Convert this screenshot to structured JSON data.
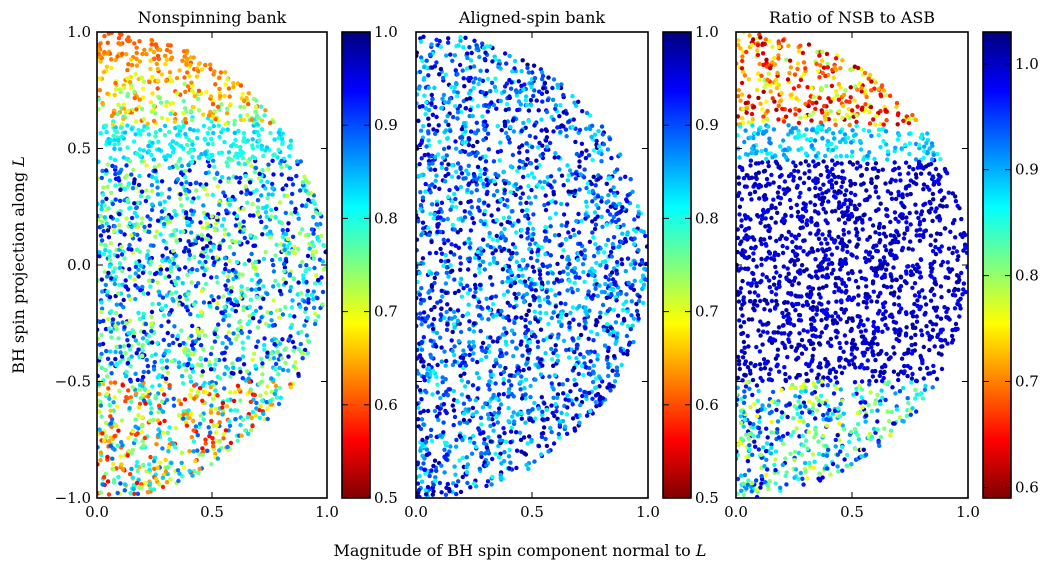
{
  "xlabel": "Magnitude of BH spin component normal to",
  "ylabel": "BH spin projection along",
  "vector_symbol": "L",
  "colormap": [
    "#7f0000",
    "#ff0000",
    "#ff7f00",
    "#ffff00",
    "#7fff7f",
    "#00ffff",
    "#007fff",
    "#0000ff",
    "#00007f"
  ],
  "chart_data": [
    {
      "type": "scatter",
      "title": "Nonspinning bank",
      "xlim": [
        0.0,
        1.0
      ],
      "ylim": [
        -1.0,
        1.0
      ],
      "xticks": [
        "0.0",
        "0.5",
        "1.0"
      ],
      "yticks": [
        "1.0",
        "0.5",
        "0.0",
        "−0.5",
        "−1.0"
      ],
      "colorbar": {
        "range": [
          0.5,
          1.0
        ],
        "ticks": [
          "1.0",
          "0.9",
          "0.8",
          "0.7",
          "0.6",
          "0.5"
        ]
      },
      "value_bands": [
        {
          "chi_parallel": [
            0.6,
            1.0
          ],
          "value": [
            0.55,
            0.8
          ]
        },
        {
          "chi_parallel": [
            0.45,
            0.6
          ],
          "value": [
            0.78,
            0.85
          ]
        },
        {
          "chi_parallel": [
            -0.5,
            0.45
          ],
          "value": [
            0.7,
            0.98
          ]
        },
        {
          "chi_parallel": [
            -1.0,
            -0.5
          ],
          "value": [
            0.55,
            0.9
          ]
        }
      ]
    },
    {
      "type": "scatter",
      "title": "Aligned-spin bank",
      "xlim": [
        0.0,
        1.0
      ],
      "ylim": [
        -1.0,
        1.0
      ],
      "xticks": [
        "0.0",
        "0.5",
        "1.0"
      ],
      "yticks": [],
      "colorbar": {
        "range": [
          0.5,
          1.0
        ],
        "ticks": [
          "1.0",
          "0.9",
          "0.8",
          "0.7",
          "0.6",
          "0.5"
        ]
      },
      "value_bands": [
        {
          "chi_parallel": [
            -1.0,
            1.0
          ],
          "value": [
            0.8,
            0.99
          ]
        }
      ]
    },
    {
      "type": "scatter",
      "title": "Ratio of NSB to ASB",
      "xlim": [
        0.0,
        1.0
      ],
      "ylim": [
        -1.0,
        1.0
      ],
      "xticks": [
        "0.0",
        "0.5",
        "1.0"
      ],
      "yticks": [],
      "colorbar": {
        "range": [
          0.59,
          1.03
        ],
        "ticks": [
          "1.0",
          "0.9",
          "0.8",
          "0.7",
          "0.6"
        ]
      },
      "value_bands": [
        {
          "chi_parallel": [
            0.6,
            1.0
          ],
          "value": [
            0.6,
            0.8
          ]
        },
        {
          "chi_parallel": [
            0.45,
            0.6
          ],
          "value": [
            0.85,
            0.92
          ]
        },
        {
          "chi_parallel": [
            -0.5,
            0.45
          ],
          "value": [
            0.97,
            1.02
          ]
        },
        {
          "chi_parallel": [
            -1.0,
            -0.5
          ],
          "value": [
            0.75,
            1.0
          ]
        }
      ]
    }
  ]
}
